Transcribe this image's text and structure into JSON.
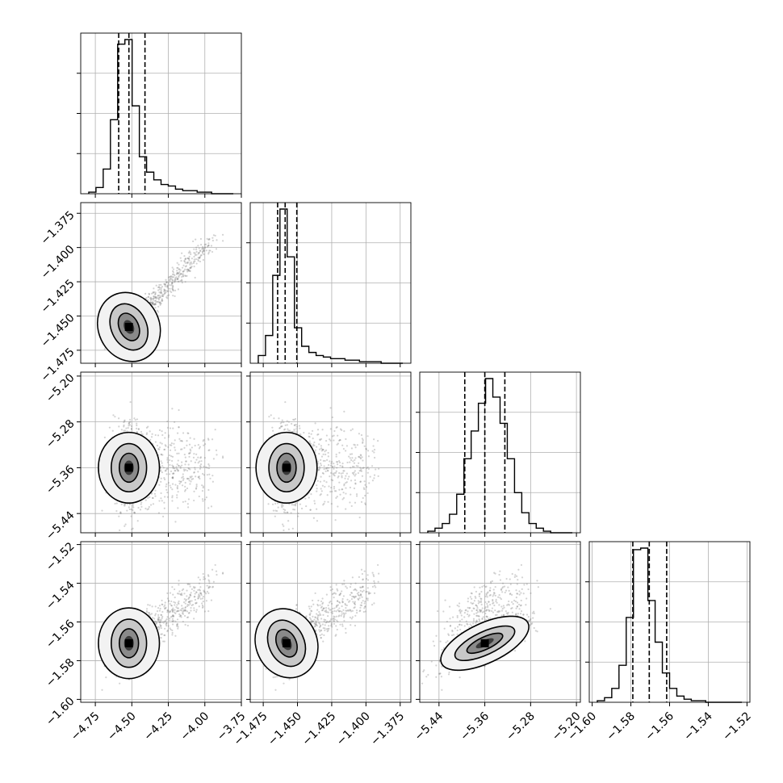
{
  "chart_data": {
    "type": "corner",
    "grid": true,
    "histogram_color": "#000000",
    "scatter_color": "#808080",
    "parameters": [
      {
        "range": [
          -4.85,
          -3.75
        ],
        "xticks": [
          "-4.75",
          "-4.50",
          "-4.25",
          "-4.00",
          "-3.75"
        ],
        "xtick_values": [
          -4.75,
          -4.5,
          -4.25,
          -4.0,
          -3.75
        ],
        "quantiles": [
          -4.59,
          -4.52,
          -4.41
        ],
        "hist_counts": [
          1,
          4,
          16,
          48,
          97,
          100,
          57,
          24,
          14,
          9,
          6,
          5,
          3,
          2,
          2,
          1,
          1,
          0,
          0,
          0
        ],
        "mode": -4.52
      },
      {
        "range": [
          -1.4845,
          -1.3672
        ],
        "ticks": [
          "-1.375",
          "-1.400",
          "-1.425",
          "-1.450",
          "-1.475"
        ],
        "tick_values": [
          -1.375,
          -1.4,
          -1.425,
          -1.45,
          -1.475
        ],
        "xticks": [
          "-1.475",
          "-1.450",
          "-1.425",
          "-1.400",
          "-1.375"
        ],
        "xtick_values": [
          -1.475,
          -1.45,
          -1.425,
          -1.4,
          -1.375
        ],
        "quantiles": [
          -1.4645,
          -1.459,
          -1.4505
        ],
        "hist_counts": [
          5,
          18,
          57,
          100,
          69,
          23,
          11,
          7,
          5,
          4,
          3,
          3,
          2,
          2,
          1,
          1,
          1,
          0,
          0,
          0
        ],
        "mode": -1.458
      },
      {
        "range": [
          -5.4736,
          -5.1931
        ],
        "ticks": [
          "-5.20",
          "-5.28",
          "-5.36",
          "-5.44"
        ],
        "tick_values": [
          -5.2,
          -5.28,
          -5.36,
          -5.44
        ],
        "xticks": [
          "-5.44",
          "-5.36",
          "-5.28",
          "-5.20"
        ],
        "xtick_values": [
          -5.44,
          -5.36,
          -5.28,
          -5.2
        ],
        "quantiles": [
          -5.395,
          -5.36,
          -5.325
        ],
        "hist_counts": [
          1,
          3,
          6,
          12,
          25,
          48,
          66,
          84,
          100,
          88,
          71,
          48,
          26,
          13,
          6,
          3,
          1,
          0,
          0,
          0
        ],
        "mode": -5.36
      },
      {
        "range": [
          -1.6015,
          -1.5185
        ],
        "ticks": [
          "-1.52",
          "-1.54",
          "-1.56",
          "-1.58",
          "-1.60"
        ],
        "tick_values": [
          -1.52,
          -1.54,
          -1.56,
          -1.58,
          -1.6
        ],
        "xticks": [
          "-1.60",
          "-1.58",
          "-1.56",
          "-1.54",
          "-1.52"
        ],
        "xtick_values": [
          -1.6,
          -1.58,
          -1.56,
          -1.54,
          -1.52
        ],
        "quantiles": [
          -1.579,
          -1.5705,
          -1.5615
        ],
        "hist_counts": [
          1,
          3,
          9,
          24,
          55,
          99,
          100,
          66,
          39,
          19,
          9,
          4,
          2,
          1,
          1,
          0,
          0,
          0,
          0,
          0
        ],
        "mode": -1.571
      }
    ]
  }
}
